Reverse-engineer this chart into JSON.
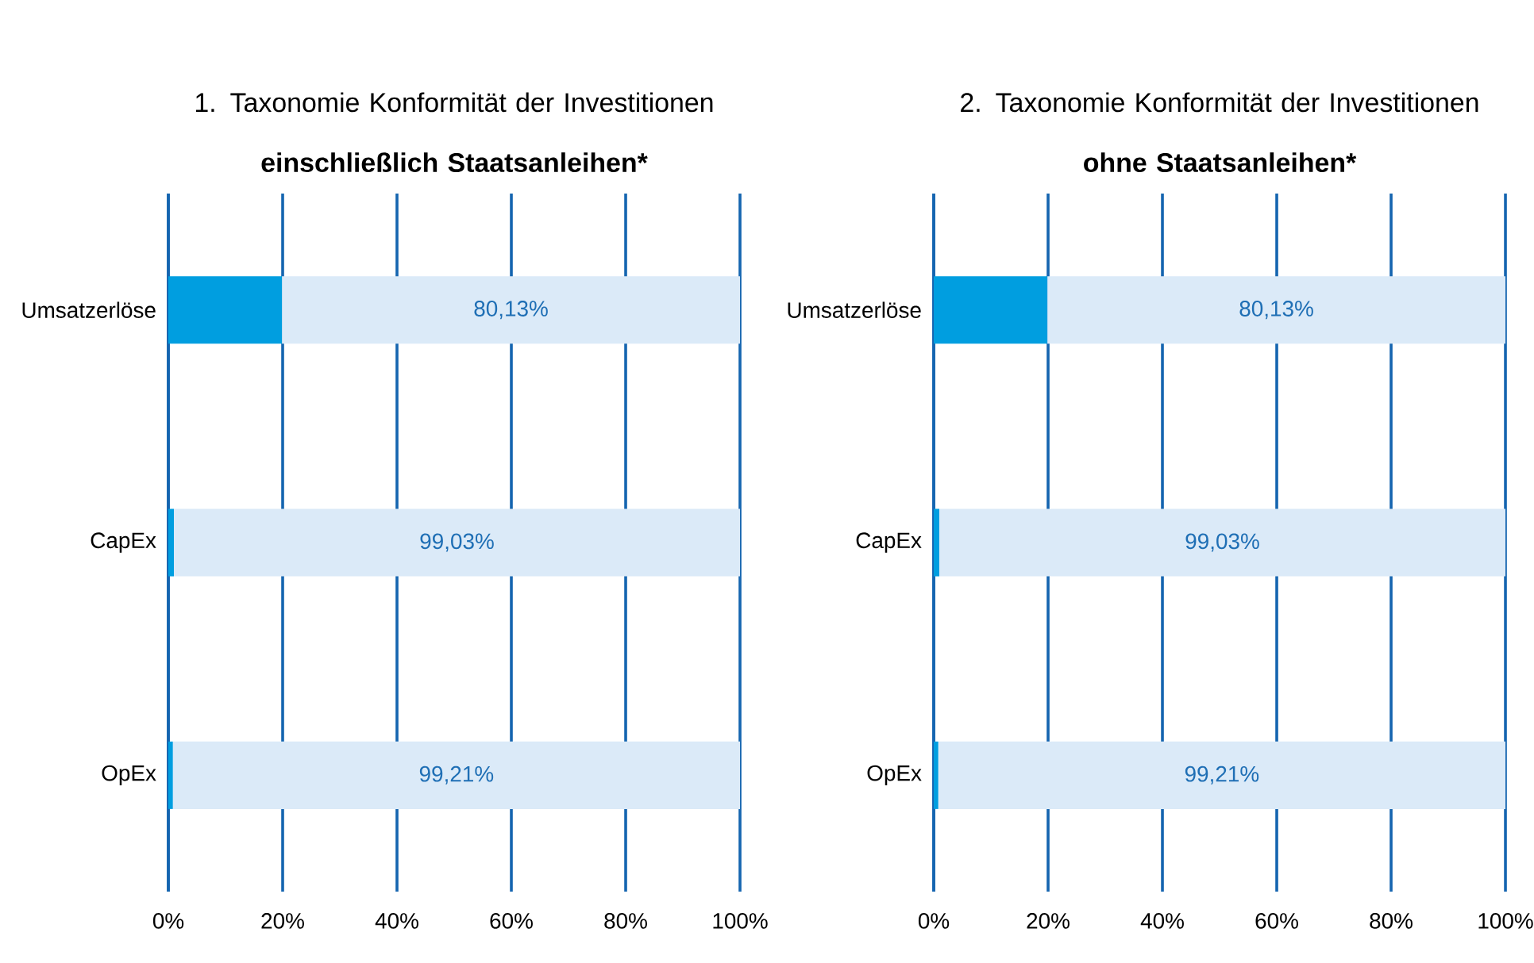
{
  "chart_data": [
    {
      "type": "bar",
      "orientation": "horizontal",
      "stacked": true,
      "title": "1. Taxonomie Konformität der Investitionen",
      "subtitle": "einschließlich Staatsanleihen*",
      "categories": [
        "Umsatzerlöse",
        "CapEx",
        "OpEx"
      ],
      "series": [
        {
          "color": "#009ee0",
          "values": [
            19.87,
            0.97,
            0.79
          ]
        },
        {
          "color": "#dbeaf8",
          "values": [
            80.13,
            99.03,
            99.21
          ],
          "value_labels": [
            "80,13%",
            "99,03%",
            "99,21%"
          ]
        }
      ],
      "xlim": [
        0,
        100
      ],
      "xticks": [
        {
          "value": 0,
          "label": "0%"
        },
        {
          "value": 20,
          "label": "20%"
        },
        {
          "value": 40,
          "label": "40%"
        },
        {
          "value": 60,
          "label": "60%"
        },
        {
          "value": 80,
          "label": "80%"
        },
        {
          "value": 100,
          "label": "100%"
        }
      ],
      "grid": "x"
    },
    {
      "type": "bar",
      "orientation": "horizontal",
      "stacked": true,
      "title": "2. Taxonomie Konformität der Investitionen",
      "subtitle": "ohne Staatsanleihen*",
      "categories": [
        "Umsatzerlöse",
        "CapEx",
        "OpEx"
      ],
      "series": [
        {
          "color": "#009ee0",
          "values": [
            19.87,
            0.97,
            0.79
          ]
        },
        {
          "color": "#dbeaf8",
          "values": [
            80.13,
            99.03,
            99.21
          ],
          "value_labels": [
            "80,13%",
            "99,03%",
            "99,21%"
          ]
        }
      ],
      "xlim": [
        0,
        100
      ],
      "xticks": [
        {
          "value": 0,
          "label": "0%"
        },
        {
          "value": 20,
          "label": "20%"
        },
        {
          "value": 40,
          "label": "40%"
        },
        {
          "value": 60,
          "label": "60%"
        },
        {
          "value": 80,
          "label": "80%"
        },
        {
          "value": 100,
          "label": "100%"
        }
      ],
      "grid": "x"
    }
  ]
}
